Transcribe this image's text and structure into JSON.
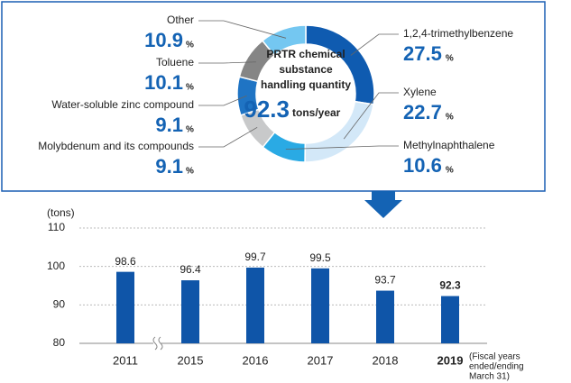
{
  "chart_data": [
    {
      "type": "pie",
      "title_lines": [
        "PRTR chemical",
        "substance",
        "handling quantity"
      ],
      "total": 92.3,
      "total_unit": "tons/year",
      "unit": "%",
      "categories": [
        "1,2,4-trimethylbenzene",
        "Xylene",
        "Methylnaphthalene",
        "Molybdenum and its compounds",
        "Water-soluble zinc compound",
        "Toluene",
        "Other"
      ],
      "values": [
        27.5,
        22.7,
        10.6,
        9.1,
        9.1,
        10.1,
        10.9
      ],
      "colors": [
        "#0f5bb0",
        "#d3e8f8",
        "#2aaae4",
        "#c8c9ca",
        "#1f74c4",
        "#858585",
        "#74c7f1"
      ]
    },
    {
      "type": "bar",
      "y_label": "(tons)",
      "categories": [
        "2011",
        "2015",
        "2016",
        "2017",
        "2018",
        "2019"
      ],
      "values": [
        98.6,
        96.4,
        99.7,
        99.5,
        93.7,
        92.3
      ],
      "color": "#0f55a8",
      "ylim": [
        80,
        110
      ],
      "yticks": [
        80,
        90,
        100,
        110
      ],
      "grid": true,
      "x_note": [
        "(Fiscal years",
        "ended/ending",
        "March 31)"
      ]
    }
  ]
}
